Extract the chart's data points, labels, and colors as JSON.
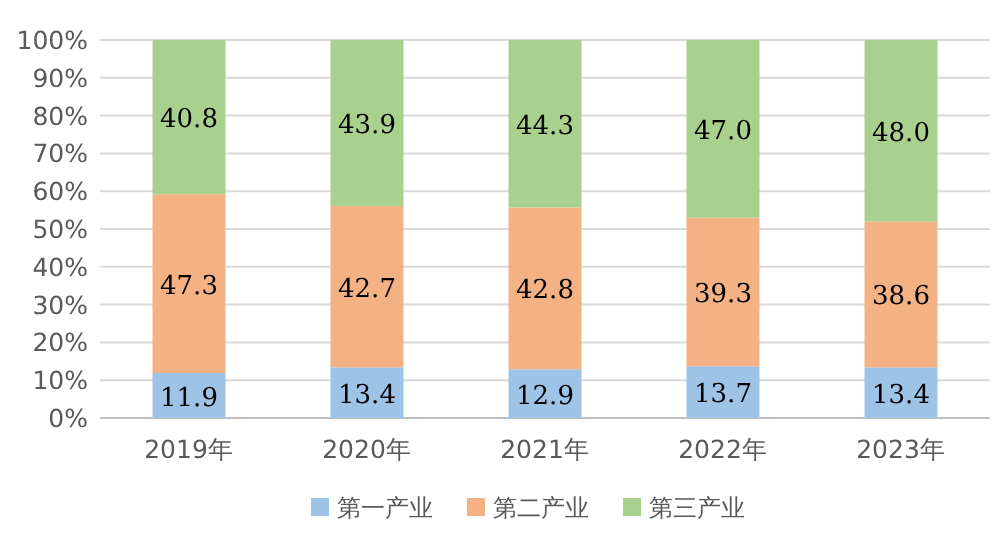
{
  "chart_data": {
    "type": "bar",
    "stacked": true,
    "categories": [
      "2019年",
      "2020年",
      "2021年",
      "2022年",
      "2023年"
    ],
    "series": [
      {
        "name": "第一产业",
        "color": "#9dc3e6",
        "values": [
          11.9,
          13.4,
          12.9,
          13.7,
          13.4
        ],
        "value_labels": [
          "11.9",
          "13.4",
          "12.9",
          "13.7",
          "13.4"
        ]
      },
      {
        "name": "第二产业",
        "color": "#f4b183",
        "values": [
          47.3,
          42.7,
          42.8,
          39.3,
          38.6
        ],
        "value_labels": [
          "47.3",
          "42.7",
          "42.8",
          "39.3",
          "38.6"
        ]
      },
      {
        "name": "第三产业",
        "color": "#a9d18e",
        "values": [
          40.8,
          43.9,
          44.3,
          47.0,
          48.0
        ],
        "value_labels": [
          "40.8",
          "43.9",
          "44.3",
          "47.0",
          "48.0"
        ]
      }
    ],
    "ylim": [
      0,
      100
    ],
    "yticks": [
      {
        "value": 0,
        "label": "0%"
      },
      {
        "value": 10,
        "label": "10%"
      },
      {
        "value": 20,
        "label": "20%"
      },
      {
        "value": 30,
        "label": "30%"
      },
      {
        "value": 40,
        "label": "40%"
      },
      {
        "value": 50,
        "label": "50%"
      },
      {
        "value": 60,
        "label": "60%"
      },
      {
        "value": 70,
        "label": "70%"
      },
      {
        "value": 80,
        "label": "80%"
      },
      {
        "value": 90,
        "label": "90%"
      },
      {
        "value": 100,
        "label": "100%"
      }
    ],
    "grid": "y",
    "legend": "bottom"
  }
}
